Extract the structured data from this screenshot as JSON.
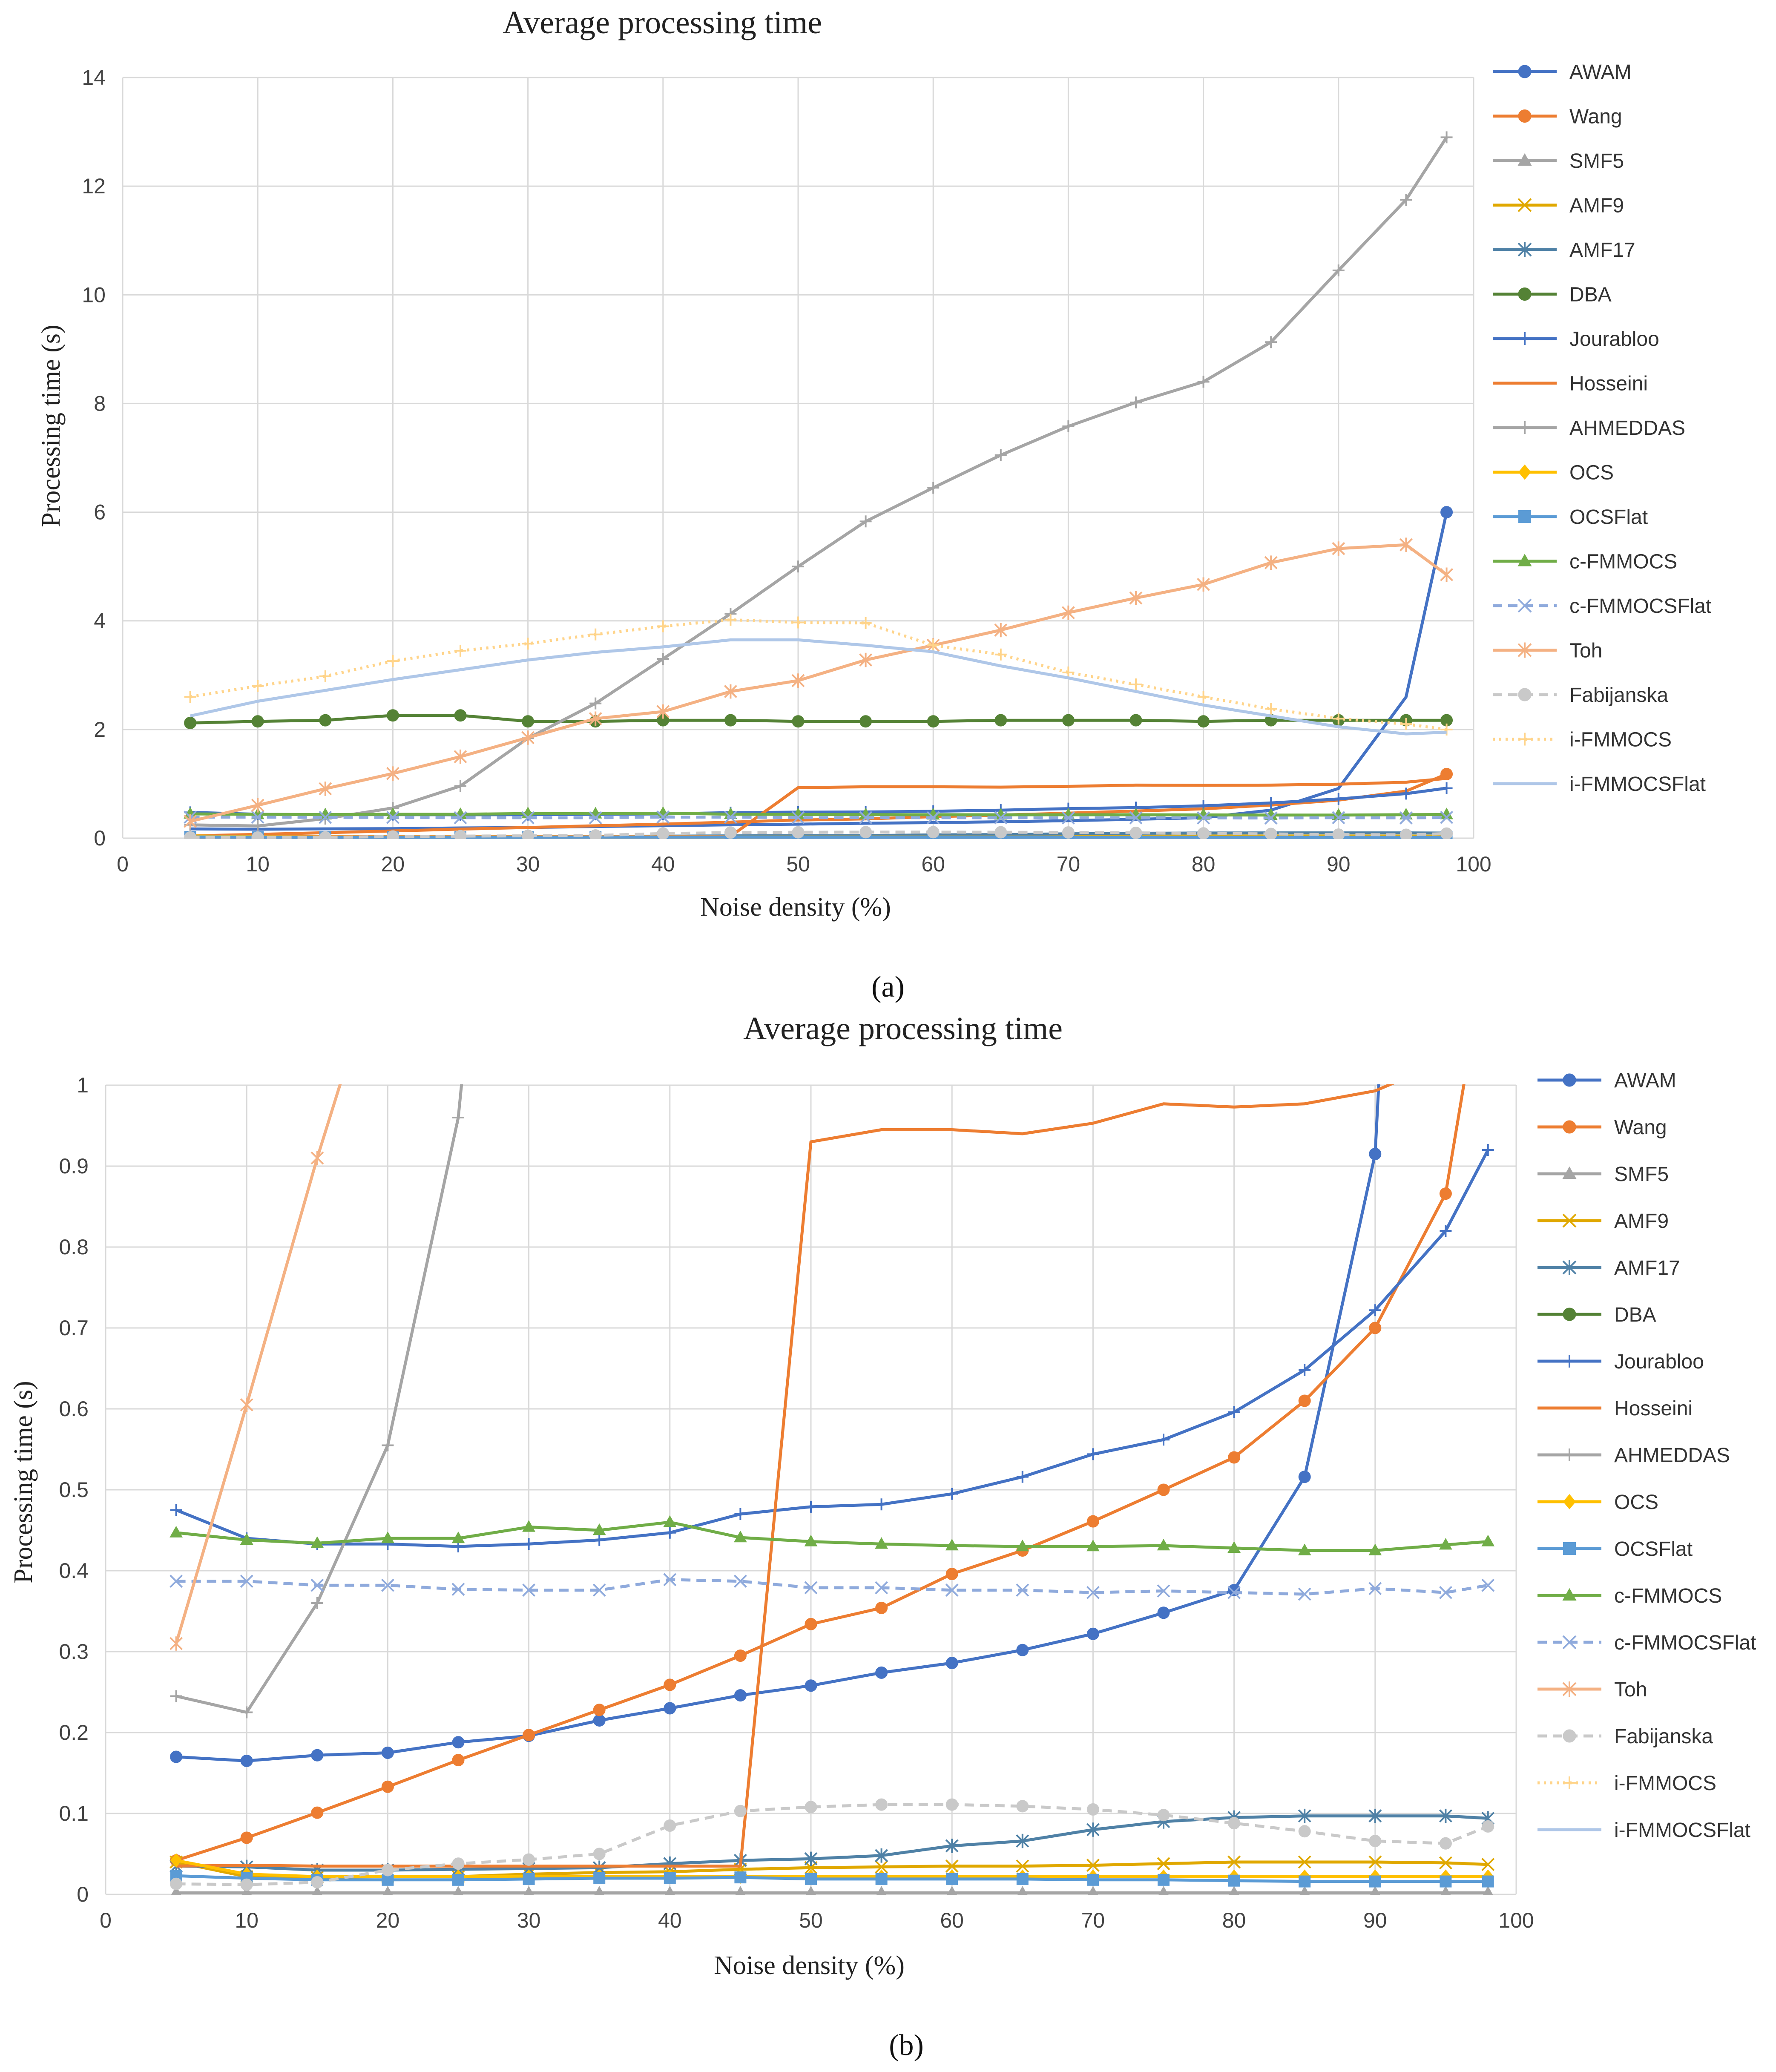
{
  "chart_data": [
    {
      "panel": "a",
      "type": "line",
      "title": "Average processing time",
      "xlabel": "Noise density (%)",
      "ylabel": "Processing time (s)",
      "xlim": [
        0,
        100
      ],
      "ylim": [
        0,
        14
      ],
      "xticks": [
        0,
        10,
        20,
        30,
        40,
        50,
        60,
        70,
        80,
        90,
        100
      ],
      "yticks": [
        0,
        2,
        4,
        6,
        8,
        10,
        12,
        14
      ],
      "grid": true,
      "legend": "right",
      "x": [
        5,
        10,
        15,
        20,
        25,
        30,
        35,
        40,
        45,
        50,
        55,
        60,
        65,
        70,
        75,
        80,
        85,
        90,
        95,
        98
      ],
      "series": [
        {
          "name": "AWAM",
          "color": "#4472C4",
          "dash": "solid",
          "marker": "circle",
          "markevery": [
            19
          ],
          "values": [
            0.17,
            0.165,
            0.172,
            0.175,
            0.188,
            0.196,
            0.215,
            0.23,
            0.246,
            0.258,
            0.274,
            0.286,
            0.302,
            0.322,
            0.348,
            0.376,
            0.516,
            0.915,
            2.6,
            6.0
          ]
        },
        {
          "name": "Wang",
          "color": "#ED7D31",
          "dash": "solid",
          "marker": "circle",
          "markevery": [
            19
          ],
          "values": [
            0.042,
            0.07,
            0.101,
            0.133,
            0.166,
            0.197,
            0.228,
            0.259,
            0.295,
            0.334,
            0.354,
            0.396,
            0.425,
            0.461,
            0.5,
            0.54,
            0.61,
            0.7,
            0.866,
            1.18
          ]
        },
        {
          "name": "SMF5",
          "color": "#A5A5A5",
          "dash": "solid",
          "marker": "triangle",
          "markevery": [],
          "values": [
            0.002,
            0.002,
            0.002,
            0.002,
            0.002,
            0.002,
            0.002,
            0.002,
            0.002,
            0.002,
            0.002,
            0.002,
            0.002,
            0.002,
            0.002,
            0.002,
            0.002,
            0.002,
            0.002,
            0.002
          ]
        },
        {
          "name": "AMF9",
          "color": "#E0A800",
          "dash": "solid",
          "marker": "x",
          "markevery": [],
          "values": [
            0.04,
            0.022,
            0.021,
            0.022,
            0.022,
            0.025,
            0.027,
            0.028,
            0.031,
            0.033,
            0.034,
            0.035,
            0.035,
            0.036,
            0.038,
            0.04,
            0.04,
            0.04,
            0.039,
            0.037
          ]
        },
        {
          "name": "AMF17",
          "color": "#4F81A6",
          "dash": "solid",
          "marker": "star",
          "markevery": [],
          "values": [
            0.035,
            0.034,
            0.03,
            0.03,
            0.031,
            0.032,
            0.033,
            0.038,
            0.042,
            0.044,
            0.048,
            0.06,
            0.066,
            0.08,
            0.09,
            0.095,
            0.097,
            0.097,
            0.097,
            0.094
          ]
        },
        {
          "name": "DBA",
          "color": "#548235",
          "dash": "solid",
          "marker": "circle",
          "markevery": "all",
          "values": [
            2.12,
            2.15,
            2.17,
            2.26,
            2.26,
            2.15,
            2.15,
            2.17,
            2.17,
            2.15,
            2.15,
            2.15,
            2.17,
            2.17,
            2.17,
            2.15,
            2.17,
            2.17,
            2.17,
            2.17
          ]
        },
        {
          "name": "Jourabloo",
          "color": "#4472C4",
          "dash": "solid",
          "marker": "plus",
          "markevery": "all",
          "values": [
            0.475,
            0.44,
            0.433,
            0.433,
            0.43,
            0.433,
            0.438,
            0.447,
            0.47,
            0.479,
            0.482,
            0.495,
            0.516,
            0.544,
            0.562,
            0.596,
            0.648,
            0.722,
            0.82,
            0.92
          ]
        },
        {
          "name": "Hosseini",
          "color": "#ED7D31",
          "dash": "solid",
          "marker": "none",
          "markevery": [],
          "values": [
            0.035,
            0.036,
            0.035,
            0.035,
            0.035,
            0.035,
            0.035,
            0.035,
            0.035,
            0.93,
            0.945,
            0.945,
            0.94,
            0.953,
            0.977,
            0.973,
            0.977,
            0.993,
            1.03,
            1.1
          ]
        },
        {
          "name": "AHMEDDAS",
          "color": "#A5A5A5",
          "dash": "solid",
          "marker": "plus",
          "markevery": "all",
          "values": [
            0.245,
            0.225,
            0.36,
            0.555,
            0.96,
            1.84,
            2.48,
            3.3,
            4.13,
            5.0,
            5.83,
            6.45,
            7.05,
            7.58,
            8.02,
            8.4,
            9.13,
            10.45,
            11.75,
            12.9
          ]
        },
        {
          "name": "OCS",
          "color": "#FFC000",
          "dash": "solid",
          "marker": "diamond",
          "markevery": [],
          "values": [
            0.042,
            0.025,
            0.022,
            0.022,
            0.022,
            0.022,
            0.022,
            0.022,
            0.022,
            0.022,
            0.022,
            0.022,
            0.022,
            0.022,
            0.022,
            0.022,
            0.022,
            0.022,
            0.022,
            0.022
          ]
        },
        {
          "name": "OCSFlat",
          "color": "#5B9BD5",
          "dash": "solid",
          "marker": "square",
          "markevery": "all",
          "values": [
            0.023,
            0.02,
            0.018,
            0.018,
            0.018,
            0.019,
            0.02,
            0.02,
            0.021,
            0.019,
            0.019,
            0.019,
            0.019,
            0.018,
            0.018,
            0.017,
            0.016,
            0.016,
            0.016,
            0.016
          ]
        },
        {
          "name": "c-FMMOCS",
          "color": "#70AD47",
          "dash": "solid",
          "marker": "triangle",
          "markevery": "all",
          "values": [
            0.447,
            0.438,
            0.434,
            0.44,
            0.44,
            0.454,
            0.45,
            0.46,
            0.441,
            0.436,
            0.433,
            0.431,
            0.43,
            0.43,
            0.431,
            0.428,
            0.425,
            0.425,
            0.432,
            0.436
          ]
        },
        {
          "name": "c-FMMOCSFlat",
          "color": "#8FAADC",
          "dash": "dash",
          "marker": "x",
          "markevery": "all",
          "values": [
            0.387,
            0.387,
            0.382,
            0.382,
            0.377,
            0.376,
            0.376,
            0.389,
            0.387,
            0.379,
            0.379,
            0.376,
            0.376,
            0.373,
            0.375,
            0.373,
            0.371,
            0.378,
            0.373,
            0.382
          ]
        },
        {
          "name": "Toh",
          "color": "#F4B183",
          "dash": "solid",
          "marker": "star",
          "markevery": "all",
          "values": [
            0.31,
            0.605,
            0.91,
            1.19,
            1.5,
            1.85,
            2.2,
            2.33,
            2.7,
            2.9,
            3.28,
            3.55,
            3.83,
            4.15,
            4.42,
            4.67,
            5.07,
            5.33,
            5.4,
            4.85
          ]
        },
        {
          "name": "Fabijanska",
          "color": "#C9C9C9",
          "dash": "dash",
          "marker": "circle",
          "markevery": "all",
          "values": [
            0.013,
            0.012,
            0.015,
            0.03,
            0.038,
            0.043,
            0.05,
            0.085,
            0.103,
            0.108,
            0.111,
            0.111,
            0.109,
            0.105,
            0.098,
            0.088,
            0.078,
            0.066,
            0.063,
            0.084
          ]
        },
        {
          "name": "i-FMMOCS",
          "color": "#FFD48A",
          "dash": "dot",
          "marker": "plus",
          "markevery": "all",
          "values": [
            2.6,
            2.8,
            2.98,
            3.26,
            3.45,
            3.58,
            3.75,
            3.9,
            4.02,
            3.97,
            3.96,
            3.55,
            3.38,
            3.05,
            2.83,
            2.6,
            2.38,
            2.2,
            2.1,
            2.0
          ]
        },
        {
          "name": "i-FMMOCSFlat",
          "color": "#AFC7E8",
          "dash": "solid",
          "marker": "none",
          "markevery": [],
          "values": [
            2.25,
            2.52,
            2.72,
            2.92,
            3.1,
            3.28,
            3.42,
            3.52,
            3.65,
            3.65,
            3.55,
            3.43,
            3.17,
            2.95,
            2.7,
            2.45,
            2.25,
            2.05,
            1.92,
            1.95
          ]
        }
      ]
    },
    {
      "panel": "b",
      "type": "line",
      "title": "Average processing time",
      "xlabel": "Noise density (%)",
      "ylabel": "Processing time (s)",
      "xlim": [
        0,
        100
      ],
      "ylim": [
        0,
        1
      ],
      "xticks": [
        0,
        10,
        20,
        30,
        40,
        50,
        60,
        70,
        80,
        90,
        100
      ],
      "yticks": [
        0,
        0.1,
        0.2,
        0.3,
        0.4,
        0.5,
        0.6,
        0.7,
        0.8,
        0.9,
        1
      ],
      "grid": true,
      "legend": "right",
      "x": [
        5,
        10,
        15,
        20,
        25,
        30,
        35,
        40,
        45,
        50,
        55,
        60,
        65,
        70,
        75,
        80,
        85,
        90,
        95,
        98
      ],
      "series": "same as panel a"
    }
  ],
  "panel_labels": {
    "a": "(a)",
    "b": "(b)"
  }
}
